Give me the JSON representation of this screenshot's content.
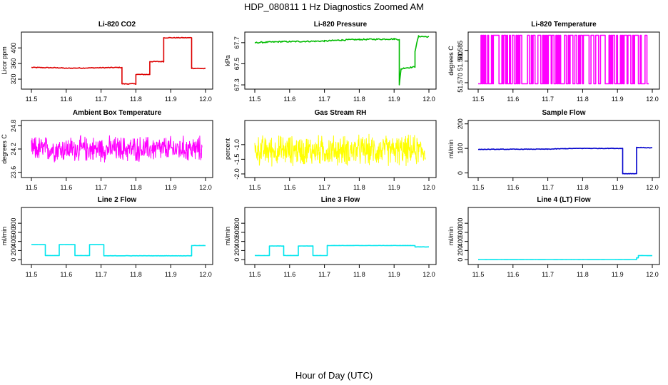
{
  "figure": {
    "title": "HDP_080811  1 Hz Diagnostics Zoomed AM",
    "xlabel": "Hour of Day (UTC)"
  },
  "chart_data": [
    {
      "type": "line",
      "title": "Li-820 CO2",
      "ylabel": "Licor ppm",
      "color": "#dd0000",
      "xlim": [
        11.5,
        12.0
      ],
      "ylim": [
        300,
        435
      ],
      "xticks": [
        "11.5",
        "11.6",
        "11.7",
        "11.8",
        "11.9",
        "12.0"
      ],
      "yticks": [
        "320",
        "360",
        "400"
      ],
      "noise": 1,
      "series": [
        {
          "name": "CO2",
          "x": [
            11.5,
            11.58,
            11.6,
            11.76,
            11.76,
            11.8,
            11.8,
            11.84,
            11.84,
            11.88,
            11.88,
            11.96,
            11.96,
            12.0
          ],
          "values": [
            350,
            349,
            348,
            350,
            308,
            308,
            332,
            332,
            365,
            365,
            426,
            426,
            348,
            347
          ]
        }
      ]
    },
    {
      "type": "line",
      "title": "Li-820 Pressure",
      "ylabel": "kPa",
      "color": "#00bb00",
      "xlim": [
        11.5,
        12.0
      ],
      "ylim": [
        67.28,
        67.78
      ],
      "xticks": [
        "11.5",
        "11.6",
        "11.7",
        "11.8",
        "11.9",
        "12.0"
      ],
      "yticks": [
        "67.3",
        "67.5",
        "67.7"
      ],
      "noise": 0.006,
      "series": [
        {
          "name": "Pressure",
          "x": [
            11.5,
            11.58,
            11.6,
            11.7,
            11.75,
            11.8,
            11.9,
            11.915,
            11.915,
            11.92,
            11.93,
            11.96,
            11.96,
            11.97,
            11.97,
            12.0
          ],
          "values": [
            67.7,
            67.71,
            67.71,
            67.715,
            67.725,
            67.73,
            67.735,
            67.73,
            67.3,
            67.45,
            67.46,
            67.47,
            67.62,
            67.76,
            67.76,
            67.755
          ]
        }
      ]
    },
    {
      "type": "line",
      "title": "Li-820 Temperature",
      "ylabel": "degrees C",
      "color": "#ff00ff",
      "xlim": [
        11.5,
        12.0
      ],
      "ylim": [
        51.568,
        51.5925
      ],
      "xticks": [
        "11.5",
        "11.6",
        "11.7",
        "11.8",
        "11.9",
        "12.0"
      ],
      "yticks": [
        "51.570",
        "51.580",
        "51.585"
      ],
      "mode": "binary",
      "low": 51.5695,
      "high": 51.592,
      "series": [
        {
          "name": "Temperature"
        }
      ]
    },
    {
      "type": "line",
      "title": "Ambient Box Temperature",
      "ylabel": "degrees C",
      "color": "#ff00ff",
      "xlim": [
        11.5,
        12.0
      ],
      "ylim": [
        23.52,
        24.88
      ],
      "xticks": [
        "11.5",
        "11.6",
        "11.7",
        "11.8",
        "11.9",
        "12.0"
      ],
      "yticks": [
        "23.6",
        "24.2",
        "24.8"
      ],
      "mode": "noise",
      "center": 24.2,
      "amplitude": 0.38,
      "series": [
        {
          "name": "Box Temperature"
        }
      ]
    },
    {
      "type": "line",
      "title": "Gas Stream RH",
      "ylabel": "percent",
      "color": "#ffff00",
      "xlim": [
        11.5,
        12.0
      ],
      "ylim": [
        -2.05,
        -0.25
      ],
      "xticks": [
        "11.5",
        "11.6",
        "11.7",
        "11.8",
        "11.9",
        "12.0"
      ],
      "yticks": [
        "-2.0",
        "-1.5",
        "-1.0"
      ],
      "mode": "noise",
      "center": -1.2,
      "amplitude": 0.6,
      "series": [
        {
          "name": "RH"
        }
      ]
    },
    {
      "type": "line",
      "title": "Sample Flow",
      "ylabel": "ml/min",
      "color": "#0000cc",
      "xlim": [
        11.5,
        12.0
      ],
      "ylim": [
        -10,
        205
      ],
      "xticks": [
        "11.5",
        "11.6",
        "11.7",
        "11.8",
        "11.9",
        "12.0"
      ],
      "yticks": [
        "0",
        "100",
        "200"
      ],
      "noise": 1,
      "series": [
        {
          "name": "Sample Flow",
          "x": [
            11.5,
            11.7,
            11.75,
            11.8,
            11.915,
            11.915,
            11.955,
            11.955,
            12.0
          ],
          "values": [
            96,
            97,
            99,
            100,
            100,
            -3,
            -3,
            104,
            102
          ]
        }
      ]
    },
    {
      "type": "line",
      "title": "Line 2 Flow",
      "ylabel": "ml/min",
      "color": "#00e5ee",
      "xlim": [
        11.5,
        12.0
      ],
      "ylim": [
        -60,
        1100
      ],
      "xticks": [
        "11.5",
        "11.6",
        "11.7",
        "11.8",
        "11.9",
        "12.0"
      ],
      "yticks": [
        "0",
        "200",
        "400",
        "600",
        "800"
      ],
      "noise": 2,
      "series": [
        {
          "name": "Line 2 Flow",
          "x": [
            11.5,
            11.54,
            11.54,
            11.58,
            11.58,
            11.625,
            11.625,
            11.667,
            11.667,
            11.708,
            11.708,
            11.96,
            11.96,
            12.0
          ],
          "values": [
            330,
            330,
            90,
            90,
            330,
            330,
            90,
            90,
            330,
            330,
            85,
            85,
            310,
            310
          ]
        }
      ]
    },
    {
      "type": "line",
      "title": "Line 3 Flow",
      "ylabel": "ml/min",
      "color": "#00e5ee",
      "xlim": [
        11.5,
        12.0
      ],
      "ylim": [
        -60,
        1100
      ],
      "xticks": [
        "11.5",
        "11.6",
        "11.7",
        "11.8",
        "11.9",
        "12.0"
      ],
      "yticks": [
        "0",
        "200",
        "400",
        "600",
        "800"
      ],
      "noise": 2,
      "series": [
        {
          "name": "Line 3 Flow",
          "x": [
            11.5,
            11.542,
            11.542,
            11.583,
            11.583,
            11.625,
            11.625,
            11.667,
            11.667,
            11.708,
            11.708,
            11.96,
            11.96,
            12.0
          ],
          "values": [
            90,
            90,
            300,
            300,
            90,
            90,
            300,
            300,
            90,
            90,
            310,
            310,
            280,
            280
          ]
        }
      ]
    },
    {
      "type": "line",
      "title": "Line 4 (LT) Flow",
      "ylabel": "ml/min",
      "color": "#00e5ee",
      "xlim": [
        11.5,
        12.0
      ],
      "ylim": [
        -60,
        1100
      ],
      "xticks": [
        "11.5",
        "11.6",
        "11.7",
        "11.8",
        "11.9",
        "12.0"
      ],
      "yticks": [
        "0",
        "200",
        "400",
        "600",
        "800"
      ],
      "noise": 1,
      "series": [
        {
          "name": "Line 4 Flow",
          "x": [
            11.5,
            11.955,
            11.955,
            11.96,
            11.96,
            12.0
          ],
          "values": [
            2,
            2,
            40,
            40,
            90,
            88
          ]
        }
      ]
    }
  ]
}
